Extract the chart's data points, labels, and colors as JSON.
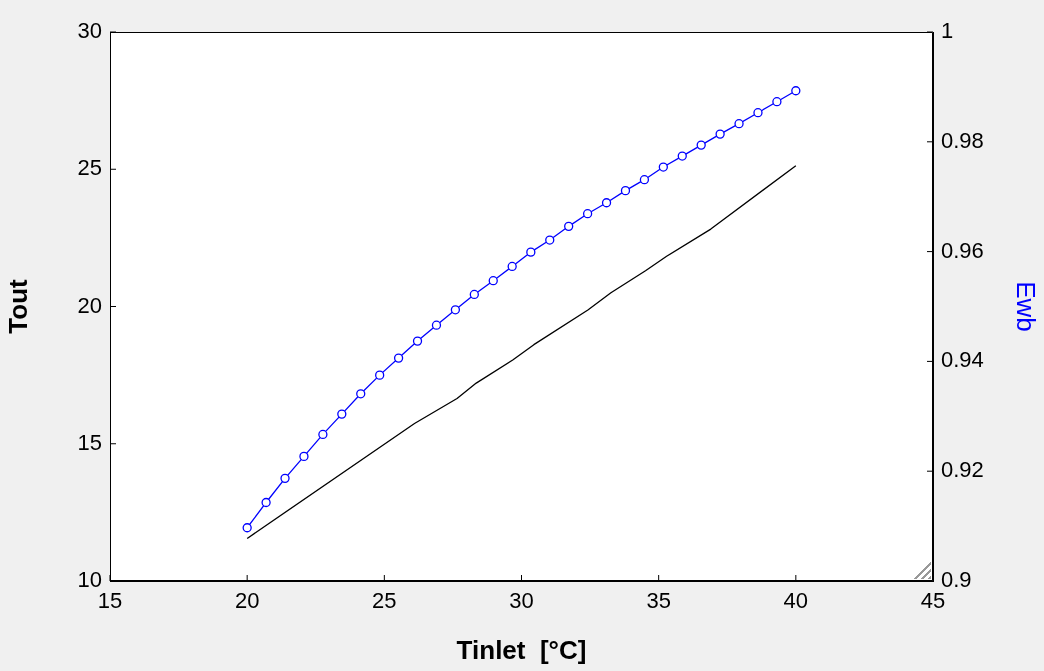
{
  "chart_data": {
    "type": "line",
    "xlabel": "Tinlet  [°C]",
    "ylabel": "Tout",
    "y2label": "Ewb",
    "xlim": [
      15,
      45
    ],
    "xticks": [
      15,
      20,
      25,
      30,
      35,
      40,
      45
    ],
    "ylim": [
      10,
      30
    ],
    "yticks": [
      10,
      15,
      20,
      25,
      30
    ],
    "y2lim": [
      0.9,
      1
    ],
    "y2ticks": [
      0.9,
      0.92,
      0.94,
      0.96,
      0.98,
      1
    ],
    "grid": false,
    "legend": false,
    "series": [
      {
        "type": "line",
        "color": "#000000",
        "marker": "none",
        "x": [
          20,
          26.1,
          27.65,
          28.35,
          29.68,
          30.45,
          32.42,
          33.26,
          34.52,
          35.29,
          36.9,
          40
        ],
        "values": [
          11.55,
          15.74,
          16.65,
          17.21,
          18.05,
          18.61,
          19.87,
          20.5,
          21.3,
          21.83,
          22.82,
          25.13
        ]
      },
      {
        "type": "line",
        "color": "#0000ff",
        "marker": "circle",
        "axis": "y2",
        "x": [
          20,
          20.69,
          21.38,
          22.07,
          22.76,
          23.45,
          24.14,
          24.83,
          25.52,
          26.21,
          26.9,
          27.59,
          28.28,
          28.97,
          29.66,
          30.34,
          31.03,
          31.72,
          32.41,
          33.1,
          33.79,
          34.48,
          35.17,
          35.86,
          36.55,
          37.24,
          37.93,
          38.62,
          39.31,
          40
        ],
        "values": [
          0.9097,
          0.9143,
          0.9187,
          0.9227,
          0.9267,
          0.9304,
          0.9341,
          0.9375,
          0.9406,
          0.9437,
          0.9466,
          0.9494,
          0.9522,
          0.9547,
          0.9573,
          0.9599,
          0.9621,
          0.9646,
          0.9669,
          0.9689,
          0.9711,
          0.9731,
          0.9754,
          0.9774,
          0.9794,
          0.9814,
          0.9833,
          0.9853,
          0.9873,
          0.9893
        ]
      }
    ]
  }
}
